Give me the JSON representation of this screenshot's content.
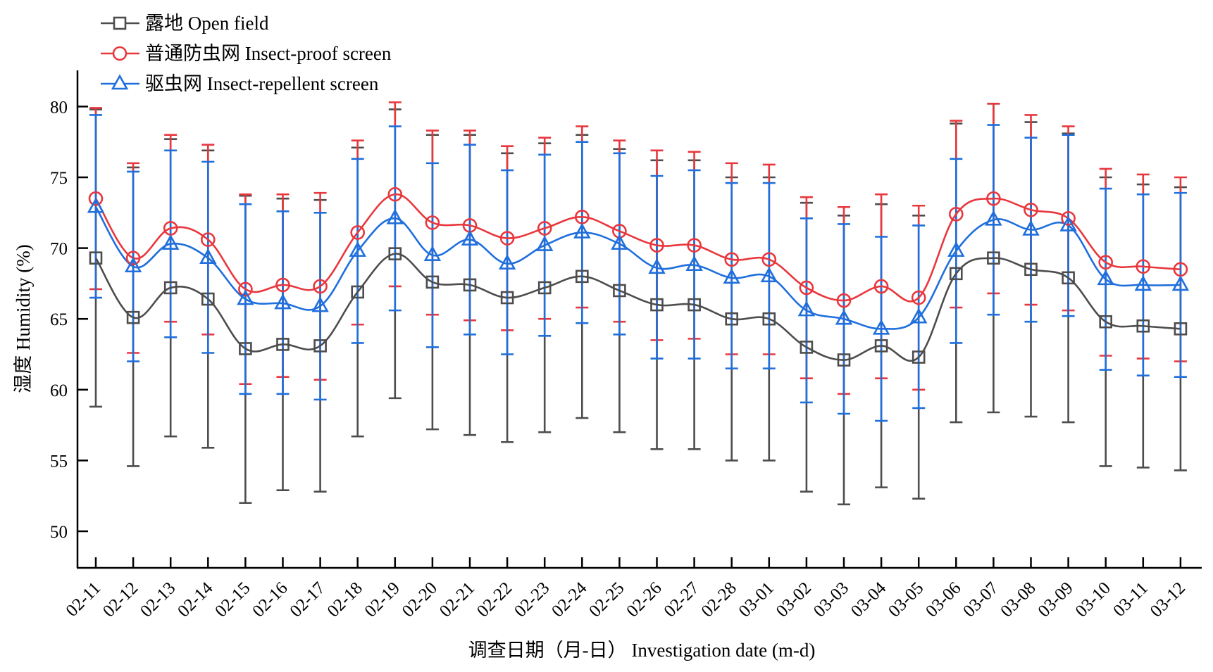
{
  "chart_data": {
    "type": "line",
    "title": "",
    "xlabel": "调查日期（月-日） Investigation date (m-d)",
    "ylabel": "湿度 Humidity (%)",
    "ylim": [
      47.5,
      82.5
    ],
    "yticks": [
      50,
      55,
      60,
      65,
      70,
      75,
      80
    ],
    "grid": false,
    "legend_position": "top-left",
    "error_bars": true,
    "categories": [
      "02-11",
      "02-12",
      "02-13",
      "02-14",
      "02-15",
      "02-16",
      "02-17",
      "02-18",
      "02-19",
      "02-20",
      "02-21",
      "02-22",
      "02-23",
      "02-24",
      "02-25",
      "02-26",
      "02-27",
      "02-28",
      "03-01",
      "03-02",
      "03-03",
      "03-04",
      "03-05",
      "03-06",
      "03-07",
      "03-08",
      "03-09",
      "03-10",
      "03-11",
      "03-12"
    ],
    "series": [
      {
        "name": "露地 Open field",
        "marker": "square",
        "color": "#4d4d4d",
        "values": [
          69.3,
          65.1,
          67.2,
          66.4,
          62.9,
          63.2,
          63.1,
          66.9,
          69.6,
          67.6,
          67.4,
          66.5,
          67.2,
          68.0,
          67.0,
          66.0,
          66.0,
          65.0,
          65.0,
          63.0,
          62.1,
          63.1,
          62.3,
          68.2,
          69.3,
          68.5,
          67.9,
          64.8,
          64.5,
          64.3
        ],
        "lower": [
          58.8,
          54.6,
          56.7,
          55.9,
          52.0,
          52.9,
          52.8,
          56.7,
          59.4,
          57.2,
          56.8,
          56.3,
          57.0,
          58.0,
          57.0,
          55.8,
          55.8,
          55.0,
          55.0,
          52.8,
          51.9,
          53.1,
          52.3,
          57.7,
          58.4,
          58.1,
          57.7,
          54.6,
          54.5,
          54.3
        ],
        "upper": [
          79.8,
          75.7,
          77.7,
          76.9,
          73.7,
          73.5,
          73.4,
          77.1,
          79.8,
          78.0,
          78.0,
          76.7,
          77.4,
          78.0,
          77.0,
          76.2,
          76.2,
          75.0,
          75.0,
          73.2,
          72.3,
          73.1,
          72.3,
          78.8,
          80.2,
          78.9,
          78.1,
          75.0,
          74.5,
          74.3
        ]
      },
      {
        "name": "普通防虫网 Insect-proof screen",
        "marker": "circle",
        "color": "#e8373d",
        "values": [
          73.5,
          69.3,
          71.4,
          70.6,
          67.1,
          67.4,
          67.3,
          71.1,
          73.8,
          71.8,
          71.6,
          70.7,
          71.4,
          72.2,
          71.2,
          70.2,
          70.2,
          69.2,
          69.2,
          67.2,
          66.3,
          67.3,
          66.5,
          72.4,
          73.5,
          72.7,
          72.1,
          69.0,
          68.7,
          68.5
        ],
        "lower": [
          67.1,
          62.6,
          64.8,
          63.9,
          60.4,
          60.9,
          60.7,
          64.6,
          67.3,
          65.3,
          64.9,
          64.2,
          65.0,
          65.8,
          64.8,
          63.5,
          63.6,
          62.5,
          62.5,
          60.8,
          59.7,
          60.8,
          60.0,
          65.8,
          66.8,
          66.0,
          65.6,
          62.4,
          62.2,
          62.0
        ],
        "upper": [
          79.9,
          76.0,
          78.0,
          77.3,
          73.8,
          73.8,
          73.9,
          77.6,
          80.3,
          78.3,
          78.3,
          77.2,
          77.8,
          78.6,
          77.6,
          76.9,
          76.8,
          76.0,
          75.9,
          73.6,
          72.9,
          73.8,
          73.0,
          79.0,
          80.2,
          79.4,
          78.6,
          75.6,
          75.2,
          75.0
        ]
      },
      {
        "name": "驱虫网 Insect-repellent screen",
        "marker": "triangle",
        "color": "#1f6fdc",
        "values": [
          72.9,
          68.7,
          70.3,
          69.3,
          66.4,
          66.1,
          65.9,
          69.8,
          72.1,
          69.5,
          70.6,
          68.9,
          70.2,
          71.1,
          70.3,
          68.6,
          68.8,
          67.9,
          68.0,
          65.6,
          65.0,
          64.3,
          65.1,
          69.8,
          72.0,
          71.3,
          71.6,
          67.8,
          67.4,
          67.4
        ],
        "lower": [
          66.5,
          62.0,
          63.7,
          62.6,
          59.7,
          59.7,
          59.3,
          63.3,
          65.6,
          63.0,
          63.9,
          62.5,
          63.8,
          64.7,
          63.9,
          62.2,
          62.2,
          61.5,
          61.5,
          59.1,
          58.3,
          57.8,
          58.7,
          63.3,
          65.3,
          64.8,
          65.2,
          61.4,
          61.0,
          60.9
        ],
        "upper": [
          79.4,
          75.4,
          76.9,
          76.1,
          73.1,
          72.6,
          72.5,
          76.3,
          78.6,
          76.0,
          77.3,
          75.5,
          76.6,
          77.5,
          76.7,
          75.1,
          75.5,
          74.6,
          74.6,
          72.1,
          71.7,
          70.8,
          71.6,
          76.3,
          78.7,
          77.8,
          78.0,
          74.2,
          73.8,
          73.9
        ]
      }
    ]
  }
}
